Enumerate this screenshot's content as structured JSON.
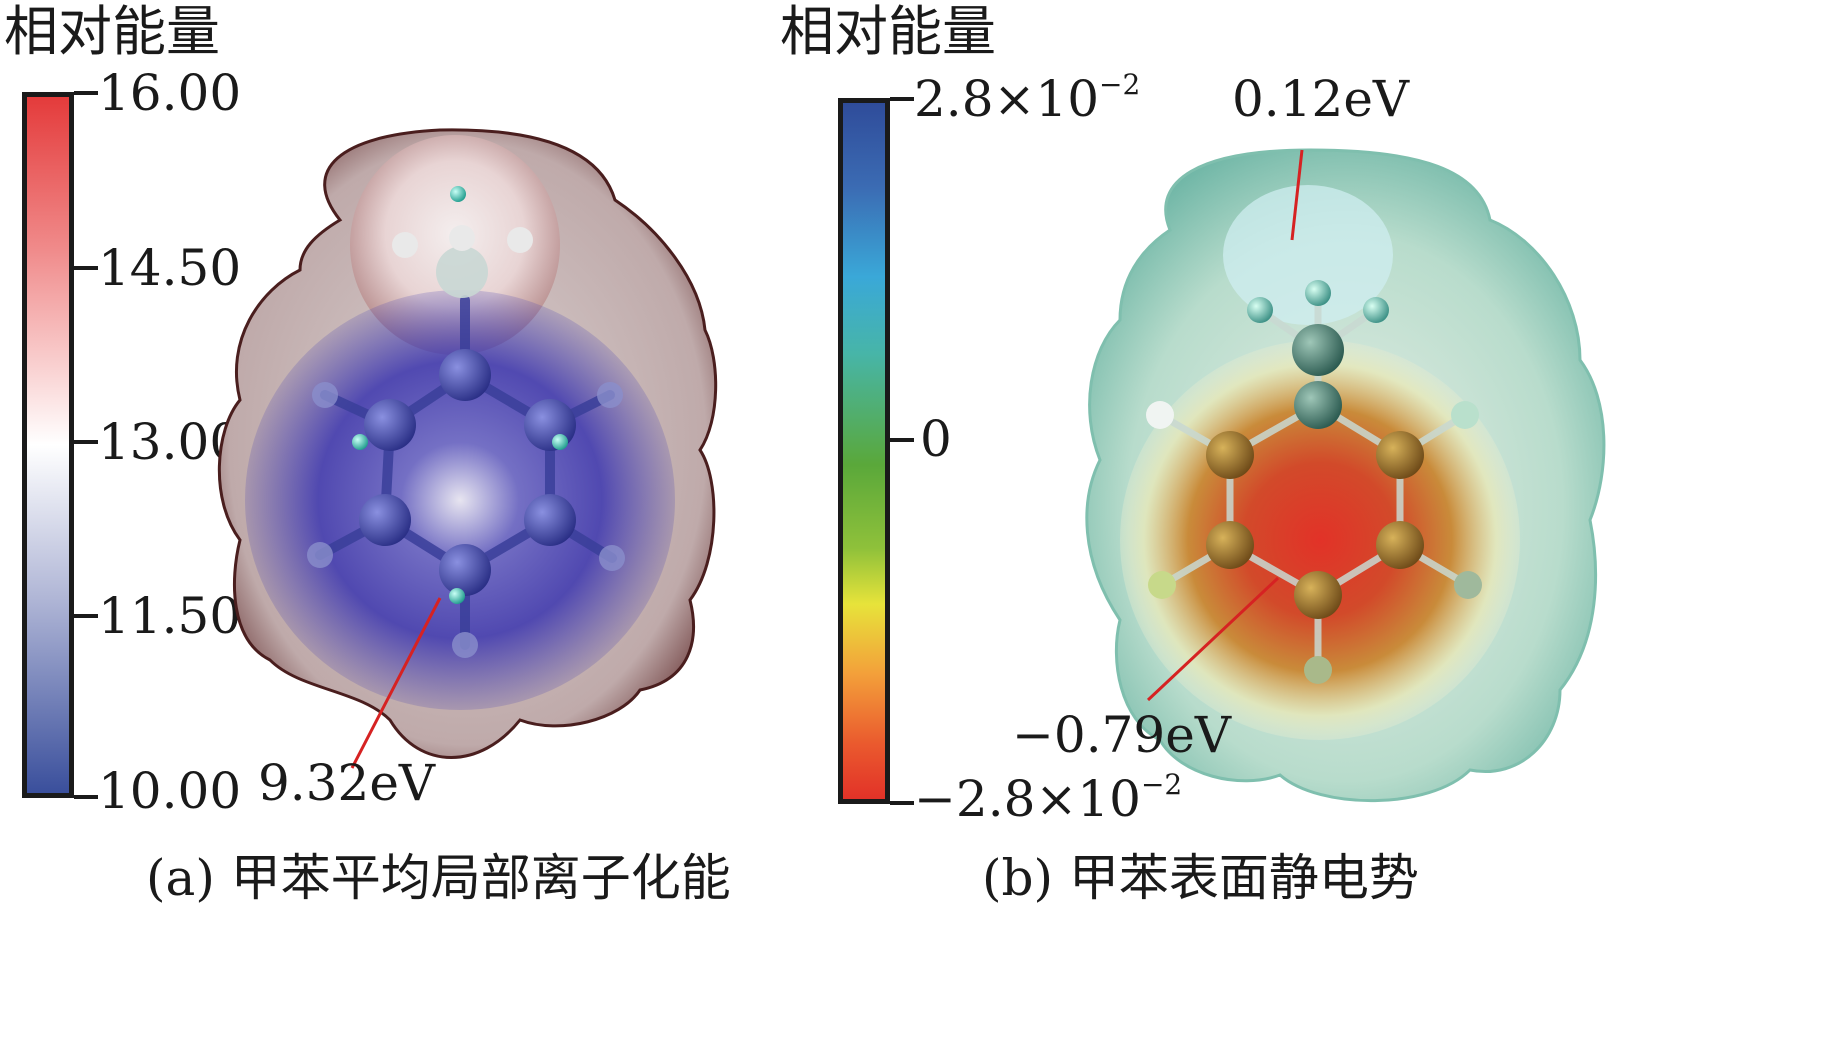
{
  "panel_a": {
    "colorbar_title": "相对能量",
    "ticks": [
      "16.00",
      "14.50",
      "13.00",
      "11.50",
      "10.00"
    ],
    "annotation": "9.32eV",
    "caption_prefix": "(a)",
    "caption_text": "甲苯平均局部离子化能",
    "colors": {
      "top": "#e43b3b",
      "mid": "#ffffff",
      "bottom": "#3a4f9c"
    }
  },
  "panel_b": {
    "colorbar_title": "相对能量",
    "tick_top_base": "2.8×10",
    "tick_top_exp": "−2",
    "tick_mid": "0",
    "tick_bottom_base": "−2.8×10",
    "tick_bottom_exp": "−2",
    "annotation_top": "0.12eV",
    "annotation_bottom": "−0.79eV",
    "caption_prefix": "(b)",
    "caption_text": "甲苯表面静电势",
    "colors": {
      "top": "#2f4c9a",
      "mid": "#5aa83a",
      "bottom": "#e23228"
    }
  }
}
